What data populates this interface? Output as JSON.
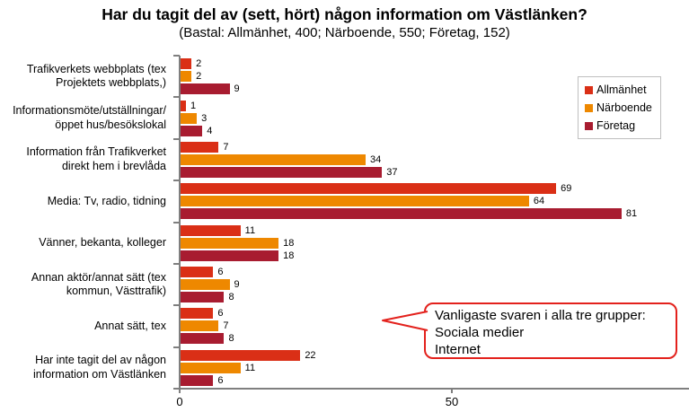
{
  "title": "Har du tagit del av (sett, hört) någon information om Västlänken?",
  "subtitle": "(Bastal: Allmänhet, 400; Närboende, 550; Företag, 152)",
  "callout": {
    "lines": [
      "Vanligaste svaren i alla tre grupper:",
      "Sociala medier",
      "Internet"
    ],
    "border_color": "#e3211c"
  },
  "colors": {
    "axis": "#7f7f7f",
    "legend_border": "#bfbfbf",
    "allmanhet": "#da2f16",
    "narboende": "#ee8800",
    "foretag": "#a81c30"
  },
  "chart_data": {
    "type": "bar",
    "orientation": "horizontal",
    "title": "Har du tagit del av (sett, hört) någon information om Västlänken?",
    "subtitle": "(Bastal: Allmänhet, 400; Närboende, 550; Företag, 152)",
    "categories": [
      "Trafikverkets webbplats (tex\nProjektets webbplats,)",
      "Informationsmöte/utställningar/\nöppet hus/besökslokal",
      "Information från Trafikverket\ndirekt hem i brevlåda",
      "Media: Tv, radio, tidning",
      "Vänner, bekanta, kolleger",
      "Annan aktör/annat sätt (tex\nkommun, Västtrafik)",
      "Annat sätt, tex",
      "Har inte tagit del av någon\ninformation om Västlänken"
    ],
    "series": [
      {
        "name": "Allmänhet",
        "color": "#da2f16",
        "values": [
          2,
          1,
          7,
          69,
          11,
          6,
          6,
          22
        ]
      },
      {
        "name": "Närboende",
        "color": "#ee8800",
        "values": [
          2,
          3,
          34,
          64,
          18,
          9,
          7,
          11
        ]
      },
      {
        "name": "Företag",
        "color": "#a81c30",
        "values": [
          9,
          4,
          37,
          81,
          18,
          8,
          8,
          6
        ]
      }
    ],
    "value_labels": true,
    "x_ticks": [
      0,
      50
    ],
    "xlim": [
      0,
      93
    ],
    "grid": false,
    "legend_position": "upper-right"
  }
}
